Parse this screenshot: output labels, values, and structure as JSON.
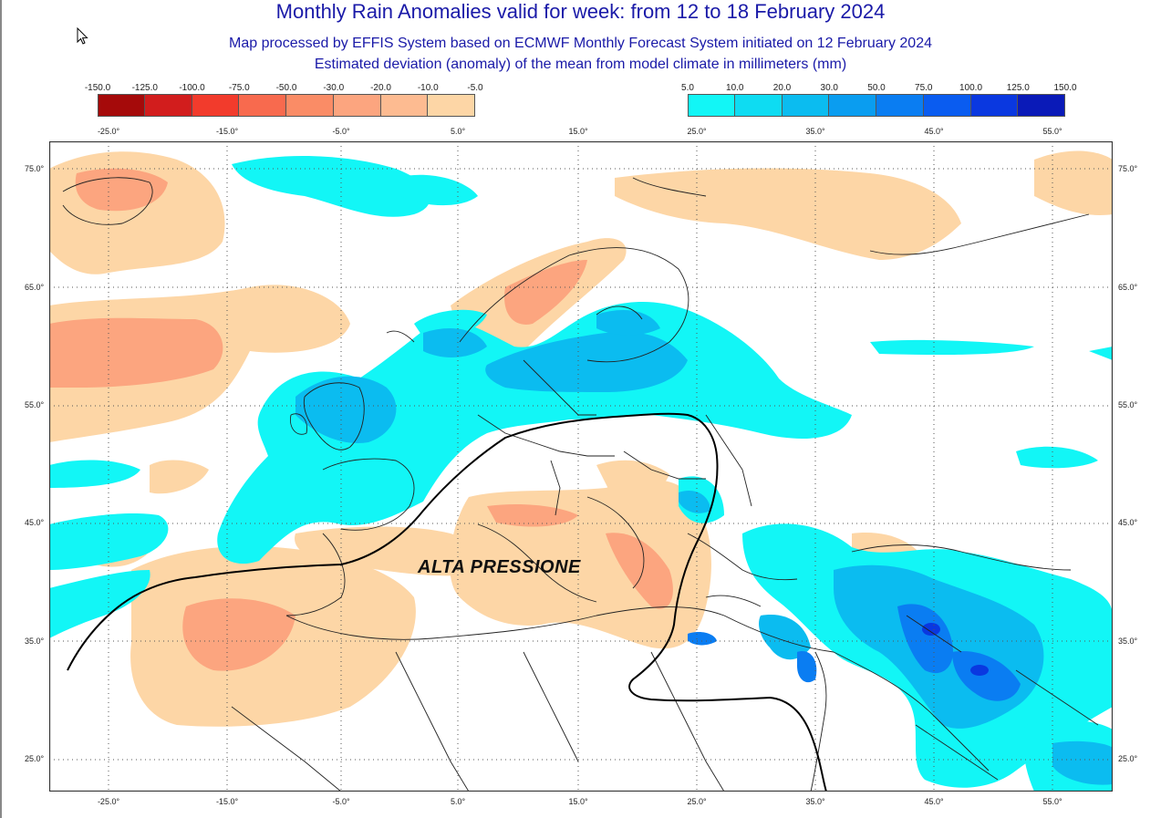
{
  "title": "Monthly Rain Anomalies valid for week: from 12 to 18 February 2024",
  "subtitle_1": "Map processed by EFFIS System based on ECMWF Monthly Forecast System initiated on 12 February 2024",
  "subtitle_2": "Estimated deviation (anomaly) of the mean from model climate in millimeters (mm)",
  "map_annotation": "ALTA PRESSIONE",
  "legend_negative": {
    "ticks": [
      "-150.0",
      "-125.0",
      "-100.0",
      "-75.0",
      "-50.0",
      "-30.0",
      "-20.0",
      "-10.0",
      "-5.0"
    ],
    "colors": [
      "#a50a0a",
      "#d21d1d",
      "#f23b2c",
      "#f86a4e",
      "#fa8c66",
      "#fca57f",
      "#fdbb91",
      "#fdd6a6"
    ]
  },
  "legend_positive": {
    "ticks": [
      "5.0",
      "10.0",
      "20.0",
      "30.0",
      "50.0",
      "75.0",
      "100.0",
      "125.0",
      "150.0"
    ],
    "colors": [
      "#12f6f6",
      "#0edcf2",
      "#0bbcf0",
      "#0a9df0",
      "#0a7df2",
      "#0a5cf0",
      "#0a38e0",
      "#0a1ab8"
    ]
  },
  "longitude_labels": [
    "-25.0°",
    "-15.0°",
    "-5.0°",
    "5.0°",
    "15.0°",
    "25.0°",
    "35.0°",
    "45.0°",
    "55.0°"
  ],
  "latitude_labels": [
    "75.0°",
    "65.0°",
    "55.0°",
    "45.0°",
    "35.0°",
    "25.0°"
  ],
  "colors": {
    "title": "#1a1aa8",
    "dry_anomaly": "#fdd6a6",
    "dry_anomaly_strong": "#fca57f",
    "wet_anomaly": "#12f6f6",
    "wet_anomaly_mid": "#0bbcf0",
    "wet_anomaly_strong": "#0a7df2",
    "wet_anomaly_extreme": "#0a38e0",
    "pressure_line": "#000000"
  }
}
